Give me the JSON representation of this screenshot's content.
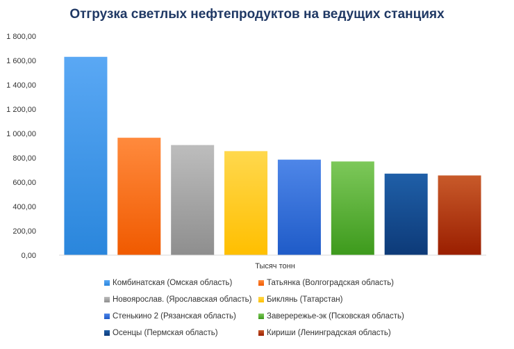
{
  "chart_data": {
    "type": "bar",
    "title": "Отгрузка  светлых  нефтепродуктов  на ведущих станциях",
    "xlabel": "Тысяч тонн",
    "ylabel": "",
    "ylim": [
      0,
      1800
    ],
    "yticks": [
      "0,00",
      "200,00",
      "400,00",
      "600,00",
      "800,00",
      "1 000,00",
      "1 200,00",
      "1 400,00",
      "1 600,00",
      "1 800,00"
    ],
    "grid": false,
    "legend_position": "bottom",
    "series": [
      {
        "name": "Комбинатская (Омская область)",
        "value": 1630,
        "color_top": "#5aa8f4",
        "color_bottom": "#2a86dc"
      },
      {
        "name": "Татьянка (Волгоградская область)",
        "value": 965,
        "color_top": "#ff8a3d",
        "color_bottom": "#f05a00"
      },
      {
        "name": "Новоярослав.  (Ярославская область)",
        "value": 905,
        "color_top": "#bdbdbd",
        "color_bottom": "#8e8e8e"
      },
      {
        "name": "Биклянь (Татарстан)",
        "value": 855,
        "color_top": "#ffd84d",
        "color_bottom": "#ffbf00"
      },
      {
        "name": "Стенькино  2 (Рязанская область)",
        "value": 785,
        "color_top": "#4e86e8",
        "color_bottom": "#1f5bc8"
      },
      {
        "name": "Заверережье-эк  (Псковская область)",
        "value": 770,
        "color_top": "#7dc85a",
        "color_bottom": "#3d9a1c"
      },
      {
        "name": "Осенцы (Пермская область)",
        "value": 670,
        "color_top": "#1f5fa8",
        "color_bottom": "#0d3a78"
      },
      {
        "name": "Кириши  (Ленинградская область)",
        "value": 655,
        "color_top": "#c85a2a",
        "color_bottom": "#9a1e00"
      }
    ]
  }
}
